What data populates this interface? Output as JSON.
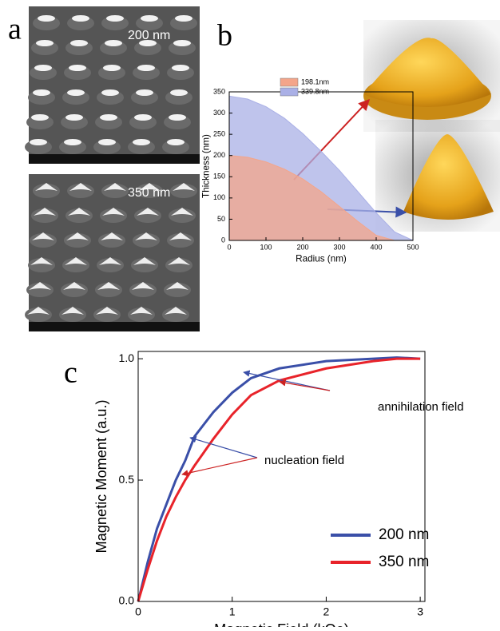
{
  "panels": {
    "a": "a",
    "b": "b",
    "c": "c"
  },
  "images": [
    {
      "label": "200 nm"
    },
    {
      "label": "350 nm"
    }
  ],
  "chart_data": [
    {
      "type": "area",
      "xlabel": "Radius (nm)",
      "ylabel": "Thickness (nm)",
      "x": [
        0,
        50,
        100,
        150,
        200,
        250,
        300,
        350,
        400,
        450,
        500
      ],
      "series": [
        {
          "name": "198.1nm",
          "color": "#f4a58a",
          "values": [
            200,
            196,
            185,
            168,
            145,
            115,
            80,
            45,
            12,
            0,
            0
          ]
        },
        {
          "name": "339.8nm",
          "color": "#aab0e6",
          "values": [
            340,
            333,
            315,
            288,
            252,
            210,
            165,
            115,
            65,
            20,
            0
          ]
        }
      ],
      "xlim": [
        0,
        500
      ],
      "xticks": [
        0,
        100,
        200,
        300,
        400,
        500
      ],
      "ylim": [
        0,
        350
      ],
      "yticks": [
        0,
        50,
        100,
        150,
        200,
        250,
        300,
        350
      ],
      "legend": "upper-left"
    },
    {
      "type": "line",
      "xlabel": "Magnetic Field (kOe)",
      "ylabel": "Magnetic Moment (a.u.)",
      "x": [
        0,
        0.1,
        0.2,
        0.3,
        0.4,
        0.5,
        0.55,
        0.6,
        0.8,
        1.0,
        1.2,
        1.5,
        2.0,
        2.5,
        2.75,
        3.0
      ],
      "series": [
        {
          "name": "200 nm",
          "color": "#3a4fa8",
          "values": [
            0,
            0.16,
            0.3,
            0.4,
            0.5,
            0.58,
            0.63,
            0.68,
            0.78,
            0.86,
            0.92,
            0.96,
            0.99,
            1.0,
            1.005,
            1.0
          ]
        },
        {
          "name": "350 nm",
          "color": "#e8232a",
          "values": [
            0,
            0.13,
            0.25,
            0.35,
            0.43,
            0.5,
            0.53,
            0.56,
            0.67,
            0.77,
            0.85,
            0.91,
            0.96,
            0.99,
            1.0,
            1.0
          ]
        }
      ],
      "xlim": [
        0,
        3.05
      ],
      "xticks": [
        0,
        1,
        2,
        3
      ],
      "ylim": [
        0,
        1.03
      ],
      "yticks": [
        {
          "value": 0,
          "label": "0.0"
        },
        {
          "value": 0.5,
          "label": "0.5"
        },
        {
          "value": 1,
          "label": "1.0"
        }
      ],
      "legend": "lower-right",
      "annotations": [
        "annihilation field",
        "nucleation field"
      ]
    }
  ]
}
